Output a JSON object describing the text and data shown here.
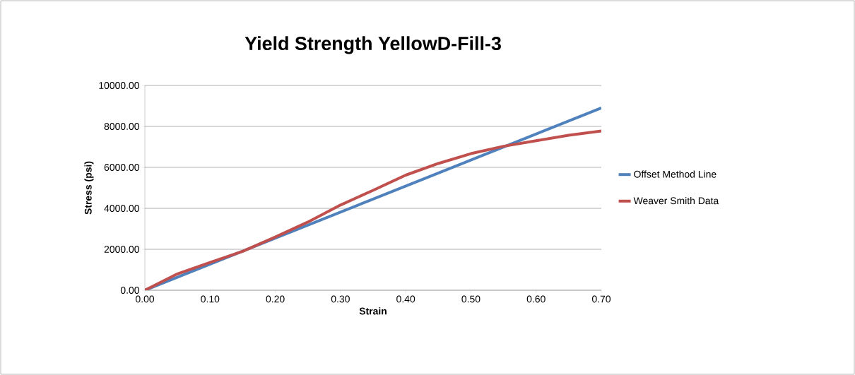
{
  "chart_data": {
    "type": "line",
    "title": "Yield Strength YellowD-Fill-3",
    "xlabel": "Strain",
    "ylabel": "Stress (psi)",
    "xlim": [
      0,
      0.7
    ],
    "xticks": [
      {
        "value": 0,
        "label": "0.00"
      },
      {
        "value": 0.1,
        "label": "0.10"
      },
      {
        "value": 0.2,
        "label": "0.20"
      },
      {
        "value": 0.3,
        "label": "0.30"
      },
      {
        "value": 0.4,
        "label": "0.40"
      },
      {
        "value": 0.5,
        "label": "0.50"
      },
      {
        "value": 0.6,
        "label": "0.60"
      },
      {
        "value": 0.7,
        "label": "0.70"
      }
    ],
    "ylim": [
      0,
      10000
    ],
    "yticks": [
      {
        "value": 0,
        "label": "0.00"
      },
      {
        "value": 2000,
        "label": "2000.00"
      },
      {
        "value": 4000,
        "label": "4000.00"
      },
      {
        "value": 6000,
        "label": "6000.00"
      },
      {
        "value": 8000,
        "label": "8000.00"
      },
      {
        "value": 10000,
        "label": "10000.00"
      }
    ],
    "grid": "y",
    "legend": "right",
    "marker": "none",
    "line_style": "solid",
    "series": [
      {
        "name": "Offset Method Line",
        "color": "#4f81bd",
        "x": [
          0,
          0.7
        ],
        "values": [
          0,
          8900
        ]
      },
      {
        "name": "Weaver Smith Data",
        "color": "#c0504d",
        "x": [
          0,
          0.05,
          0.1,
          0.15,
          0.2,
          0.25,
          0.3,
          0.35,
          0.4,
          0.45,
          0.5,
          0.55,
          0.6,
          0.65,
          0.7
        ],
        "values": [
          0,
          800,
          1360,
          1900,
          2600,
          3330,
          4160,
          4880,
          5620,
          6190,
          6670,
          7030,
          7300,
          7570,
          7780
        ]
      }
    ]
  }
}
